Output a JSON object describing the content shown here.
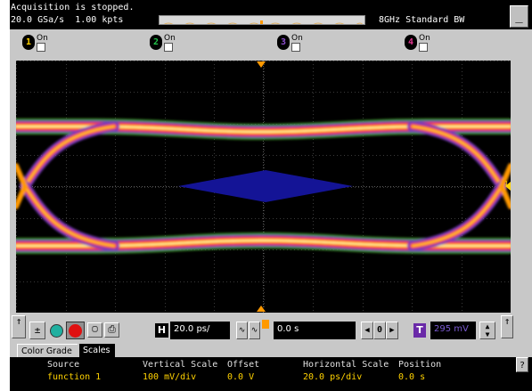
{
  "status": {
    "acquisition": "Acquisition is stopped.",
    "sample_rate": "20.0 GSa/s  1.00 kpts",
    "bandwidth": "8GHz Standard BW"
  },
  "window": {
    "minimize_label": "_"
  },
  "channels": [
    {
      "number": "1",
      "label": "On",
      "color": "#ffd200"
    },
    {
      "number": "2",
      "label": "On",
      "color": "#22c44a"
    },
    {
      "number": "3",
      "label": "On",
      "color": "#8e4fd1"
    },
    {
      "number": "4",
      "label": "On",
      "color": "#e0358f"
    }
  ],
  "screen": {
    "channel_marker": "1",
    "colors": {
      "background": "#000000",
      "grid": "#3a3a3a",
      "mask": "#141496",
      "marker": "#ff9900"
    }
  },
  "controls": {
    "horizontal_label": "H",
    "horizontal_scale": "20.0 ps/",
    "delay": "0.0 s",
    "trigger_label": "T",
    "trigger_level": "295 mV",
    "nav_stop": "0"
  },
  "tabs": {
    "color_grade": "Color Grade",
    "scales": "Scales"
  },
  "scales": {
    "source_header": "Source",
    "source_value": "function 1",
    "vscale_header": "Vertical Scale",
    "vscale_value": "100 mV/div",
    "offset_header": "Offset",
    "offset_value": "0.0 V",
    "hscale_header": "Horizontal Scale",
    "hscale_value": "20.0 ps/div",
    "position_header": "Position",
    "position_value": "0.0 s",
    "help_label": "?"
  }
}
